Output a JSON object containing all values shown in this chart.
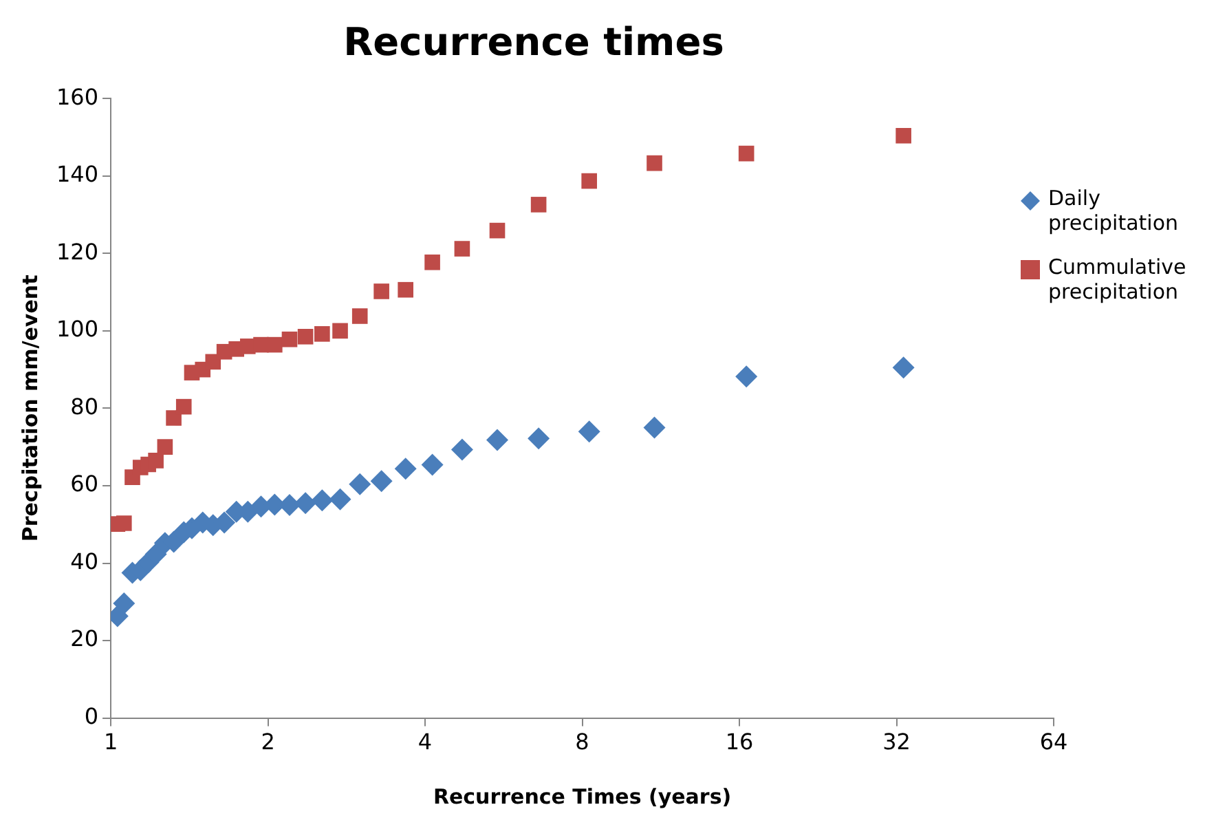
{
  "chart_data": {
    "type": "scatter",
    "title": "Recurrence times",
    "xlabel": "Recurrence Times (years)",
    "ylabel": "Precpitation mm/event",
    "log": "x",
    "xlim": [
      1,
      64
    ],
    "xticks": [
      1,
      2,
      4,
      8,
      16,
      32,
      64
    ],
    "ylim": [
      0,
      160
    ],
    "yticks": [
      0,
      20,
      40,
      60,
      80,
      100,
      120,
      140,
      160
    ],
    "grid": false,
    "legend": "right",
    "x": [
      1.03,
      1.06,
      1.1,
      1.14,
      1.18,
      1.22,
      1.27,
      1.32,
      1.38,
      1.43,
      1.5,
      1.57,
      1.65,
      1.74,
      1.83,
      1.94,
      2.06,
      2.2,
      2.36,
      2.54,
      2.75,
      3,
      3.3,
      3.67,
      4.13,
      4.71,
      5.5,
      6.6,
      8.25,
      11,
      16.5,
      33
    ],
    "series": [
      {
        "name": "Daily precipitation",
        "color": "#4a7ebb",
        "marker": "diamond",
        "values": [
          26.3,
          29.6,
          37.5,
          38.2,
          40.2,
          42.3,
          45.2,
          45.5,
          48,
          49,
          50.5,
          49.8,
          50.5,
          53.3,
          53.3,
          54.6,
          55.1,
          55,
          55.5,
          56.2,
          56.5,
          60.4,
          61.2,
          64.4,
          65.4,
          69.3,
          71.8,
          72.2,
          74,
          75,
          88.2,
          90.5
        ]
      },
      {
        "name": "Cummulative precipitation",
        "color": "#be4b48",
        "marker": "square",
        "values": [
          50.1,
          50.3,
          62.2,
          64.7,
          65.5,
          66.5,
          70,
          77.5,
          80.4,
          89.2,
          90,
          92,
          94.6,
          95.3,
          96,
          96.4,
          96.4,
          97.8,
          98.5,
          99.2,
          100,
          103.8,
          110.2,
          110.6,
          117.7,
          121.2,
          125.9,
          132.6,
          138.7,
          143.3,
          145.8,
          150.4
        ]
      }
    ]
  }
}
